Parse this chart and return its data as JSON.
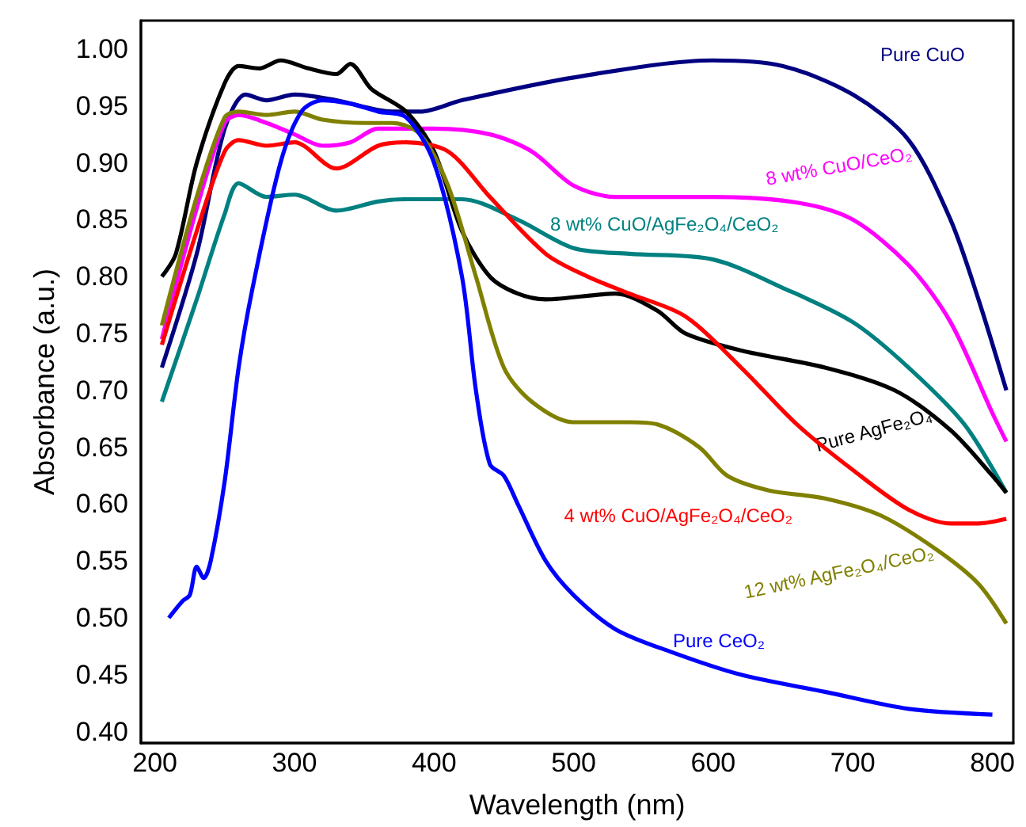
{
  "chart_data": {
    "type": "line",
    "xlabel": "Wavelength (nm)",
    "ylabel": "Absorbance (a.u.)",
    "xlim": [
      190,
      815
    ],
    "ylim": [
      0.39,
      1.025
    ],
    "xticks": [
      200,
      300,
      400,
      500,
      600,
      700,
      800
    ],
    "yticks": [
      {
        "value": 0.4,
        "label": "0.40"
      },
      {
        "value": 0.45,
        "label": "0.45"
      },
      {
        "value": 0.5,
        "label": "0.50"
      },
      {
        "value": 0.55,
        "label": "0.55"
      },
      {
        "value": 0.6,
        "label": "0.60"
      },
      {
        "value": 0.65,
        "label": "0.65"
      },
      {
        "value": 0.7,
        "label": "0.70"
      },
      {
        "value": 0.75,
        "label": "0.75"
      },
      {
        "value": 0.8,
        "label": "0.80"
      },
      {
        "value": 0.85,
        "label": "0.85"
      },
      {
        "value": 0.9,
        "label": "0.90"
      },
      {
        "value": 0.95,
        "label": "0.95"
      },
      {
        "value": 1.0,
        "label": "1.00"
      }
    ],
    "grid": false,
    "marker": "none",
    "line_style": "solid",
    "series": [
      {
        "name": "Pure CuO",
        "color": "#000080",
        "x": [
          205,
          230,
          250,
          265,
          280,
          300,
          330,
          370,
          390,
          420,
          500,
          600,
          650,
          700,
          740,
          770,
          790,
          810
        ],
        "values": [
          0.72,
          0.82,
          0.93,
          0.96,
          0.955,
          0.96,
          0.955,
          0.945,
          0.945,
          0.955,
          0.975,
          0.99,
          0.985,
          0.96,
          0.92,
          0.85,
          0.78,
          0.7
        ]
      },
      {
        "name": "8 wt% CuO/CeO₂",
        "color": "#ff00ff",
        "x": [
          205,
          230,
          250,
          260,
          280,
          300,
          320,
          340,
          360,
          400,
          440,
          470,
          500,
          530,
          600,
          660,
          700,
          740,
          770,
          800,
          810
        ],
        "values": [
          0.745,
          0.86,
          0.935,
          0.942,
          0.935,
          0.925,
          0.915,
          0.918,
          0.93,
          0.93,
          0.925,
          0.91,
          0.88,
          0.87,
          0.87,
          0.865,
          0.85,
          0.81,
          0.76,
          0.68,
          0.655
        ]
      },
      {
        "name": "8 wt% CuO/AgFe₂O₄/CeO₂",
        "color": "#008080",
        "x": [
          205,
          230,
          250,
          260,
          280,
          300,
          330,
          360,
          380,
          420,
          460,
          500,
          540,
          600,
          650,
          700,
          740,
          780,
          810
        ],
        "values": [
          0.69,
          0.78,
          0.855,
          0.882,
          0.87,
          0.872,
          0.858,
          0.866,
          0.868,
          0.868,
          0.85,
          0.825,
          0.82,
          0.815,
          0.79,
          0.76,
          0.72,
          0.67,
          0.61
        ]
      },
      {
        "name": "Pure AgFe₂O₄",
        "color": "#000000",
        "x": [
          205,
          215,
          230,
          250,
          260,
          275,
          290,
          310,
          330,
          340,
          355,
          380,
          400,
          420,
          440,
          460,
          480,
          530,
          560,
          580,
          620,
          680,
          730,
          770,
          800,
          810
        ],
        "values": [
          0.8,
          0.82,
          0.9,
          0.97,
          0.985,
          0.983,
          0.99,
          0.983,
          0.978,
          0.987,
          0.965,
          0.945,
          0.91,
          0.84,
          0.8,
          0.785,
          0.78,
          0.785,
          0.77,
          0.75,
          0.735,
          0.72,
          0.7,
          0.665,
          0.625,
          0.61
        ]
      },
      {
        "name": "4 wt% CuO/AgFe₂O₄/CeO₂",
        "color": "#ff0000",
        "x": [
          205,
          230,
          250,
          260,
          280,
          300,
          330,
          360,
          380,
          410,
          440,
          480,
          510,
          540,
          580,
          620,
          660,
          700,
          740,
          770,
          790,
          810
        ],
        "values": [
          0.74,
          0.84,
          0.91,
          0.92,
          0.915,
          0.918,
          0.895,
          0.915,
          0.918,
          0.91,
          0.87,
          0.82,
          0.8,
          0.785,
          0.765,
          0.72,
          0.67,
          0.63,
          0.595,
          0.583,
          0.583,
          0.587
        ]
      },
      {
        "name": "12 wt% AgFe₂O₄/CeO₂",
        "color": "#808000",
        "x": [
          205,
          230,
          250,
          260,
          280,
          300,
          320,
          350,
          370,
          390,
          410,
          430,
          450,
          470,
          500,
          540,
          560,
          590,
          610,
          640,
          680,
          720,
          760,
          790,
          810
        ],
        "values": [
          0.757,
          0.87,
          0.94,
          0.945,
          0.942,
          0.945,
          0.938,
          0.935,
          0.935,
          0.925,
          0.88,
          0.8,
          0.72,
          0.69,
          0.672,
          0.672,
          0.67,
          0.65,
          0.625,
          0.612,
          0.605,
          0.59,
          0.56,
          0.53,
          0.495
        ]
      },
      {
        "name": "Pure CeO₂",
        "color": "#0000ff",
        "x": [
          210,
          220,
          225,
          230,
          235,
          240,
          250,
          260,
          270,
          290,
          305,
          320,
          340,
          360,
          380,
          400,
          420,
          430,
          440,
          450,
          460,
          480,
          500,
          530,
          570,
          620,
          680,
          740,
          800
        ],
        "values": [
          0.5,
          0.515,
          0.52,
          0.545,
          0.535,
          0.55,
          0.62,
          0.72,
          0.79,
          0.9,
          0.945,
          0.955,
          0.952,
          0.945,
          0.94,
          0.9,
          0.8,
          0.7,
          0.635,
          0.625,
          0.6,
          0.55,
          0.52,
          0.49,
          0.47,
          0.45,
          0.435,
          0.42,
          0.415
        ]
      }
    ]
  }
}
